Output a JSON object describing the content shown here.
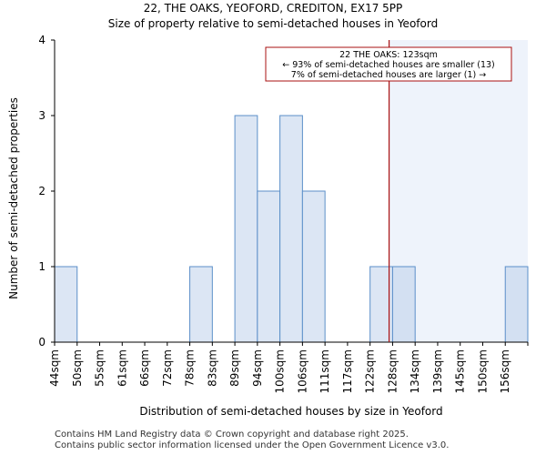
{
  "header": {
    "title": "22, THE OAKS, YEOFORD, CREDITON, EX17 5PP",
    "subtitle": "Size of property relative to semi-detached houses in Yeoford"
  },
  "footer": {
    "line1": "Contains HM Land Registry data © Crown copyright and database right 2025.",
    "line2": "Contains public sector information licensed under the Open Government Licence v3.0."
  },
  "chart_data": {
    "type": "bar",
    "xlabel": "Distribution of semi-detached houses by size in Yeoford",
    "ylabel": "Number of semi-detached properties",
    "categories": [
      "44sqm",
      "50sqm",
      "55sqm",
      "61sqm",
      "66sqm",
      "72sqm",
      "78sqm",
      "83sqm",
      "89sqm",
      "94sqm",
      "100sqm",
      "106sqm",
      "111sqm",
      "117sqm",
      "122sqm",
      "128sqm",
      "134sqm",
      "139sqm",
      "145sqm",
      "150sqm",
      "156sqm"
    ],
    "values": [
      1,
      0,
      0,
      0,
      0,
      0,
      1,
      0,
      3,
      2,
      3,
      2,
      0,
      0,
      1,
      1,
      0,
      0,
      0,
      0,
      1
    ],
    "ylim": [
      0,
      4
    ],
    "yticks": [
      0,
      1,
      2,
      3,
      4
    ],
    "grid": false,
    "marker": {
      "value": 123,
      "label_line1": "22 THE OAKS: 123sqm",
      "label_line2": "← 93% of semi-detached houses are smaller (13)",
      "label_line3": "7% of semi-detached houses are larger (1) →"
    },
    "colors": {
      "bar_fill": "#dce6f4",
      "bar_stroke": "#5b8fc9",
      "bar_fill_after": "#d3e0f2",
      "shade_after": "#eef3fb",
      "marker": "#aa1111",
      "axis": "#000000"
    }
  }
}
